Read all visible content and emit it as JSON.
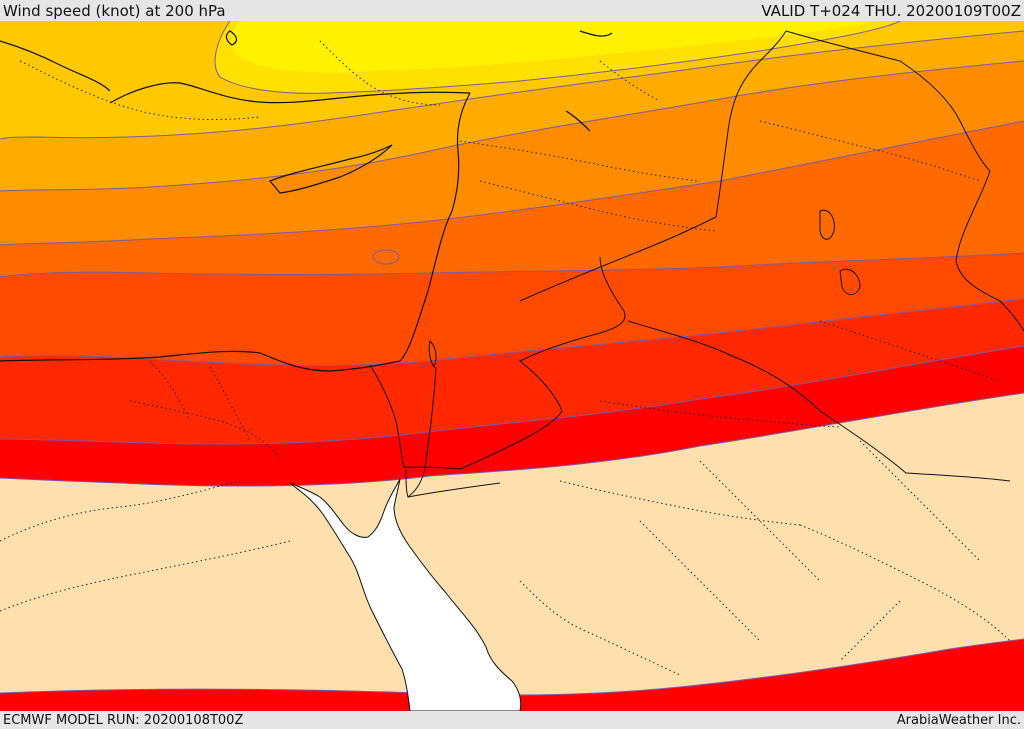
{
  "header": {
    "title": "Wind speed (knot) at 200 hPa",
    "valid": "VALID T+024 THU. 20200109T00Z"
  },
  "footer": {
    "run": "ECMWF MODEL RUN: 20200108T00Z",
    "credit": "ArabiaWeather Inc."
  },
  "map": {
    "band_colors": [
      "#fff100",
      "#ffe000",
      "#ffc800",
      "#ffac00",
      "#ff8c00",
      "#ff6a00",
      "#ff4a00",
      "#ff2800",
      "#ff0000",
      "#fde0ad"
    ],
    "sea_color": "#ffffff",
    "contour_color": "#7a5aa8",
    "border_color": "#111111"
  }
}
